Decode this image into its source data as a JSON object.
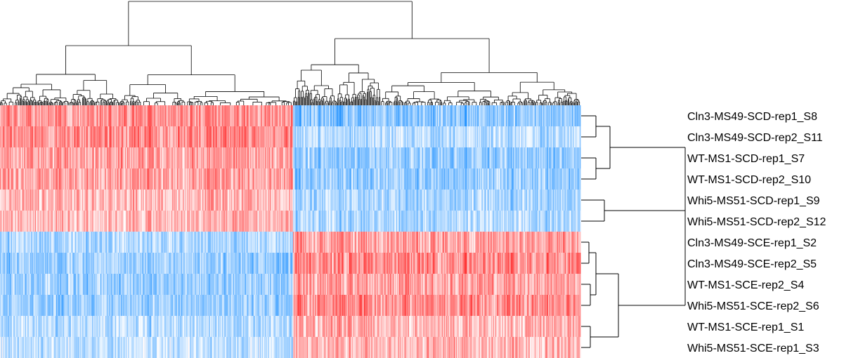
{
  "chart_data": {
    "type": "heatmap",
    "title": "",
    "xlabel": "",
    "ylabel": "",
    "n_columns": 630,
    "col_split": 0.505,
    "colors": {
      "high": "#ff1a1a",
      "low": "#1e90ff",
      "mid": "#ffffff"
    },
    "col_dendrogram": true,
    "row_dendrogram": true,
    "rows": [
      {
        "label": "Cln3-MS49-SCD-rep1_S8",
        "group": "SCD",
        "left_bias": 0.55,
        "right_bias": -0.55
      },
      {
        "label": "Cln3-MS49-SCD-rep2_S11",
        "group": "SCD",
        "left_bias": 0.55,
        "right_bias": -0.35
      },
      {
        "label": "WT-MS1-SCD-rep1_S7",
        "group": "SCD",
        "left_bias": 0.45,
        "right_bias": -0.5
      },
      {
        "label": "WT-MS1-SCD-rep2_S10",
        "group": "SCD",
        "left_bias": 0.45,
        "right_bias": -0.5
      },
      {
        "label": "Whi5-MS51-SCD-rep1_S9",
        "group": "SCD",
        "left_bias": 0.35,
        "right_bias": -0.4
      },
      {
        "label": "Whi5-MS51-SCD-rep2_S12",
        "group": "SCD",
        "left_bias": 0.35,
        "right_bias": -0.4
      },
      {
        "label": "Cln3-MS49-SCE-rep1_S2",
        "group": "SCE",
        "left_bias": -0.4,
        "right_bias": 0.45
      },
      {
        "label": "Cln3-MS49-SCE-rep2_S5",
        "group": "SCE",
        "left_bias": -0.5,
        "right_bias": 0.55
      },
      {
        "label": "WT-MS1-SCE-rep2_S4",
        "group": "SCE",
        "left_bias": -0.5,
        "right_bias": 0.45
      },
      {
        "label": "Whi5-MS51-SCE-rep2_S6",
        "group": "SCE",
        "left_bias": -0.5,
        "right_bias": 0.55
      },
      {
        "label": "WT-MS1-SCE-rep1_S1",
        "group": "SCE",
        "left_bias": -0.35,
        "right_bias": 0.35
      },
      {
        "label": "Whi5-MS51-SCE-rep1_S3",
        "group": "SCE",
        "left_bias": -0.3,
        "right_bias": 0.35
      }
    ]
  }
}
